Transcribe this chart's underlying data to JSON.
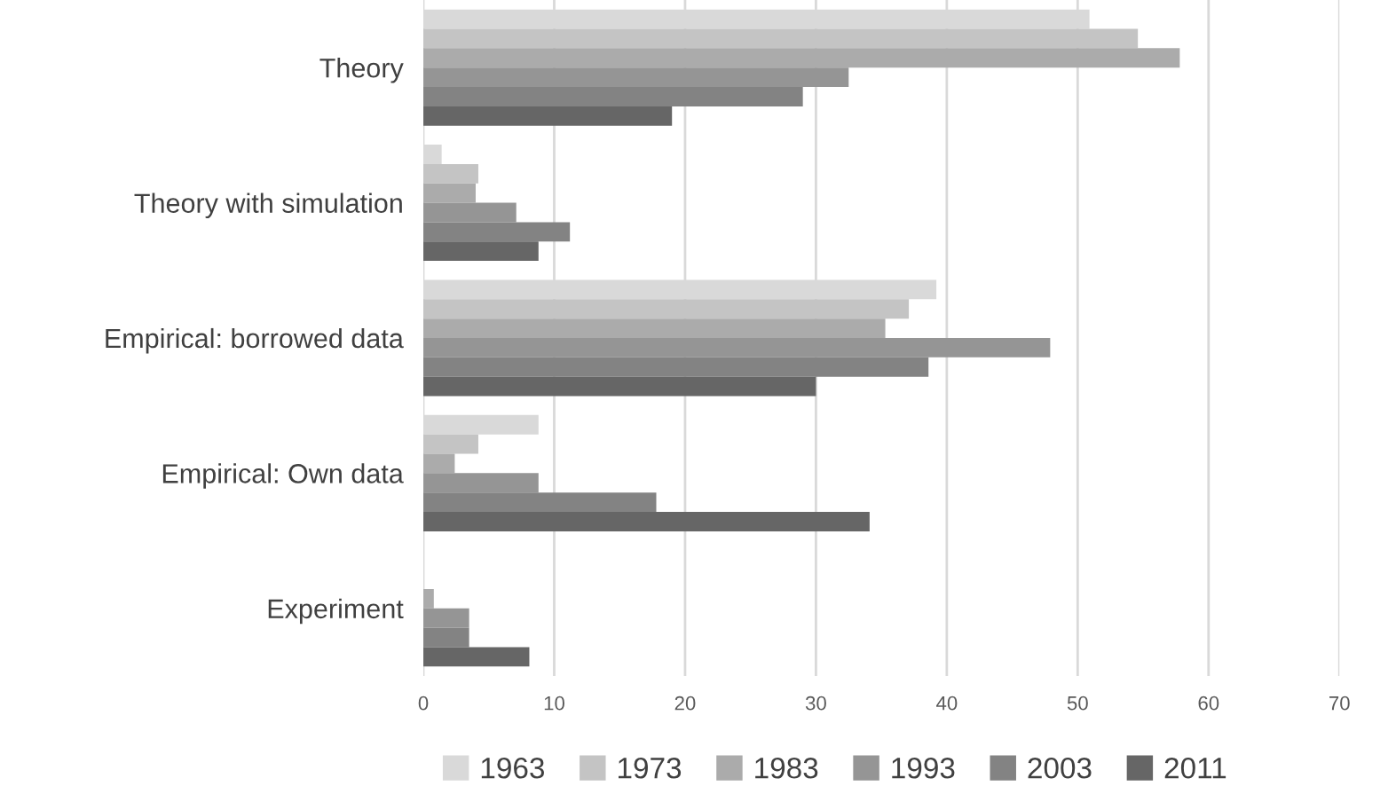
{
  "chart_data": {
    "type": "bar",
    "orientation": "horizontal",
    "categories": [
      "Theory",
      "Theory with simulation",
      "Empirical: borrowed data",
      "Empirical: Own data",
      "Experiment"
    ],
    "series": [
      {
        "name": "1963",
        "color": "#d9d9d9",
        "values": [
          50.9,
          1.4,
          39.2,
          8.8,
          0
        ]
      },
      {
        "name": "1973",
        "color": "#c4c4c4",
        "values": [
          54.6,
          4.2,
          37.1,
          4.2,
          0
        ]
      },
      {
        "name": "1983",
        "color": "#ababab",
        "values": [
          57.8,
          4.0,
          35.3,
          2.4,
          0.8
        ]
      },
      {
        "name": "1993",
        "color": "#959595",
        "values": [
          32.5,
          7.1,
          47.9,
          8.8,
          3.5
        ]
      },
      {
        "name": "2003",
        "color": "#838383",
        "values": [
          29.0,
          11.2,
          38.6,
          17.8,
          3.5
        ]
      },
      {
        "name": "2011",
        "color": "#666666",
        "values": [
          19.0,
          8.8,
          30.0,
          34.1,
          8.1
        ]
      }
    ],
    "xlim": [
      0,
      70
    ],
    "xticks": [
      0,
      10,
      20,
      30,
      40,
      50,
      60,
      70
    ],
    "grid": "x",
    "legend": "bottom"
  }
}
